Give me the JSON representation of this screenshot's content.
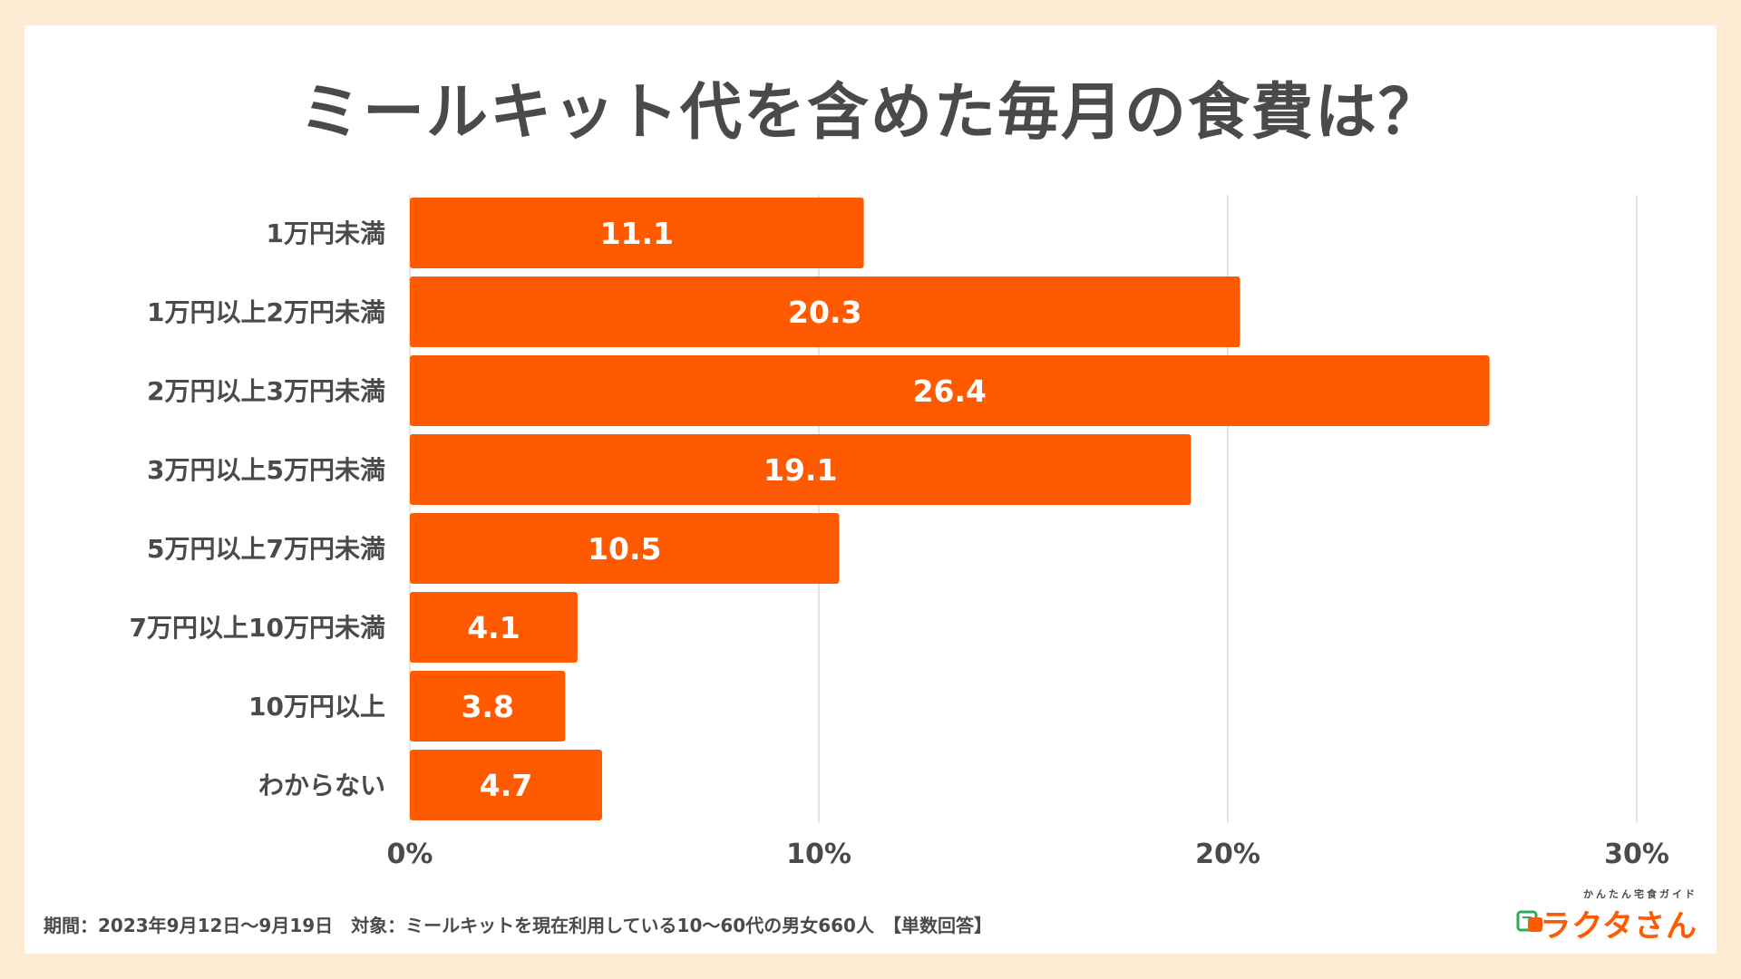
{
  "colors": {
    "background": "#fdebd3",
    "bar": "#ff5a00",
    "text": "#4a4a4a",
    "grid": "#dddddd"
  },
  "chart_data": {
    "type": "bar",
    "orientation": "horizontal",
    "title": "ミールキット代を含めた毎月の食費は？",
    "categories": [
      "1万円未満",
      "1万円以上2万円未満",
      "2万円以上3万円未満",
      "3万円以上5万円未満",
      "5万円以上7万円未満",
      "7万円以上10万円未満",
      "10万円以上",
      "わからない"
    ],
    "values": [
      11.1,
      20.3,
      26.4,
      19.1,
      10.5,
      4.1,
      3.8,
      4.7
    ],
    "xlim": [
      0,
      30
    ],
    "xticks": [
      0,
      10,
      20,
      30
    ],
    "xtick_labels": [
      "0%",
      "10%",
      "20%",
      "30%"
    ],
    "xlabel": "",
    "ylabel": "",
    "grid": true,
    "legend": "none"
  },
  "footer": {
    "note": "期間：2023年9月12日〜9月19日　対象：ミールキットを現在利用している10〜60代の男女660人　【単数回答】"
  },
  "logo": {
    "subtitle": "かんたん宅食ガイド",
    "name": "ラクタさん",
    "icon": "lunchbox-icon"
  }
}
